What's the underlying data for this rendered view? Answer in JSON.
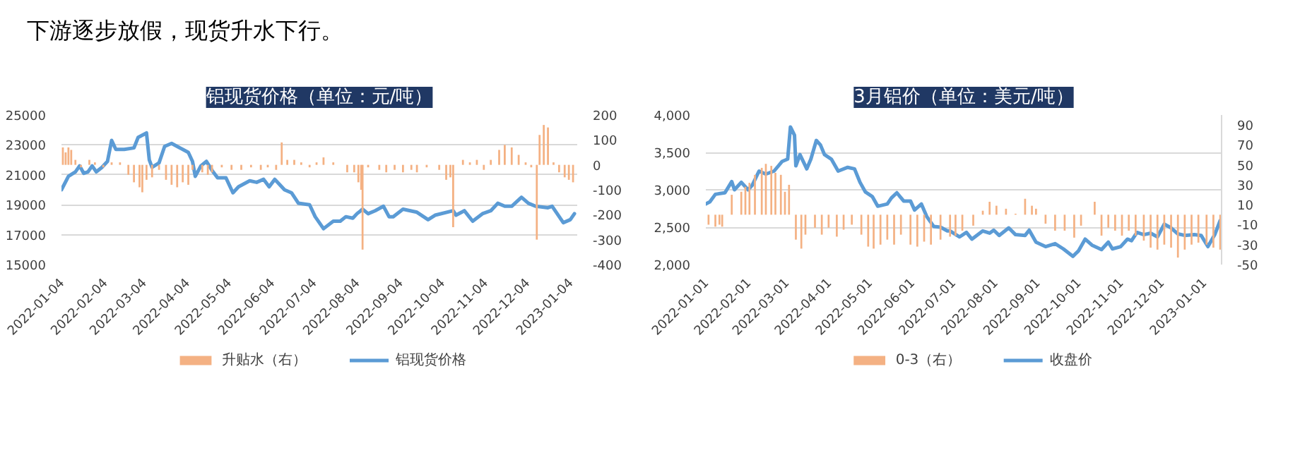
{
  "chart_data": [
    {
      "type": "bar",
      "title": "铝现货价格（单位：元/吨）",
      "annotations": [
        "下游逐步放假，现货升水下行。"
      ],
      "xlim": [
        "2022-01-04",
        "2023-01-09"
      ],
      "xticks": [
        "2022-01-04",
        "2022-02-04",
        "2022-03-04",
        "2022-04-04",
        "2022-05-04",
        "2022-06-04",
        "2022-07-04",
        "2022-08-04",
        "2022-09-04",
        "2022-10-04",
        "2022-11-04",
        "2022-12-04",
        "2023-01-04"
      ],
      "ylim": [
        15000,
        25000
      ],
      "yticks": [
        15000,
        17000,
        19000,
        21000,
        23000,
        25000
      ],
      "y2lim": [
        -400,
        200
      ],
      "y2ticks": [
        -400,
        -300,
        -200,
        -100,
        0,
        100,
        200
      ],
      "grid": "y",
      "legend": "bottom",
      "series": [
        {
          "name": "升贴水（右）",
          "axis": "y2",
          "color": "#f4b183",
          "x": [
            "2022-01-05",
            "2022-01-07",
            "2022-01-09",
            "2022-01-11",
            "2022-01-14",
            "2022-01-18",
            "2022-01-24",
            "2022-01-28",
            "2022-02-03",
            "2022-02-09",
            "2022-02-15",
            "2022-02-21",
            "2022-02-25",
            "2022-03-01",
            "2022-03-03",
            "2022-03-06",
            "2022-03-10",
            "2022-03-15",
            "2022-03-20",
            "2022-03-24",
            "2022-03-28",
            "2022-04-01",
            "2022-04-05",
            "2022-04-08",
            "2022-04-15",
            "2022-04-19",
            "2022-04-22",
            "2022-04-29",
            "2022-05-06",
            "2022-05-13",
            "2022-05-20",
            "2022-05-27",
            "2022-06-01",
            "2022-06-07",
            "2022-06-11",
            "2022-06-15",
            "2022-06-20",
            "2022-06-25",
            "2022-07-01",
            "2022-07-06",
            "2022-07-11",
            "2022-07-18",
            "2022-07-28",
            "2022-08-02",
            "2022-08-05",
            "2022-08-07",
            "2022-08-08",
            "2022-08-12",
            "2022-08-20",
            "2022-08-25",
            "2022-08-31",
            "2022-09-06",
            "2022-09-12",
            "2022-09-16",
            "2022-09-23",
            "2022-10-02",
            "2022-10-07",
            "2022-10-10",
            "2022-10-12",
            "2022-10-19",
            "2022-10-24",
            "2022-10-29",
            "2022-11-03",
            "2022-11-08",
            "2022-11-14",
            "2022-11-18",
            "2022-11-23",
            "2022-11-28",
            "2022-12-03",
            "2022-12-07",
            "2022-12-11",
            "2022-12-13",
            "2022-12-16",
            "2022-12-19",
            "2022-12-23",
            "2022-12-27",
            "2022-12-31",
            "2023-01-03",
            "2023-01-06"
          ],
          "values": [
            70,
            50,
            70,
            60,
            20,
            -10,
            20,
            10,
            -10,
            10,
            10,
            -40,
            -70,
            -90,
            -110,
            -60,
            -50,
            -20,
            -60,
            -80,
            -90,
            -70,
            -80,
            -20,
            -30,
            -40,
            -30,
            -10,
            -20,
            -20,
            -10,
            -20,
            -10,
            -20,
            90,
            20,
            20,
            10,
            -10,
            10,
            30,
            10,
            -30,
            -30,
            -70,
            -100,
            -340,
            -10,
            -20,
            -30,
            -20,
            -30,
            -20,
            -30,
            -10,
            -20,
            -60,
            -50,
            -250,
            20,
            10,
            20,
            -20,
            20,
            60,
            80,
            70,
            40,
            10,
            -10,
            -300,
            120,
            160,
            150,
            10,
            -30,
            -50,
            -60,
            -70
          ]
        },
        {
          "name": "铝现货价格",
          "type": "line",
          "color": "#5b9bd5",
          "x": [
            "2022-01-04",
            "2022-01-09",
            "2022-01-14",
            "2022-01-17",
            "2022-01-20",
            "2022-01-23",
            "2022-01-26",
            "2022-01-29",
            "2022-02-02",
            "2022-02-06",
            "2022-02-09",
            "2022-02-12",
            "2022-02-18",
            "2022-02-25",
            "2022-02-28",
            "2022-03-06",
            "2022-03-08",
            "2022-03-10",
            "2022-03-15",
            "2022-03-19",
            "2022-03-24",
            "2022-04-01",
            "2022-04-05",
            "2022-04-08",
            "2022-04-10",
            "2022-04-14",
            "2022-04-18",
            "2022-04-22",
            "2022-04-26",
            "2022-05-02",
            "2022-05-07",
            "2022-05-11",
            "2022-05-19",
            "2022-05-24",
            "2022-05-29",
            "2022-06-02",
            "2022-06-06",
            "2022-06-09",
            "2022-06-13",
            "2022-06-18",
            "2022-06-23",
            "2022-07-01",
            "2022-07-05",
            "2022-07-11",
            "2022-07-18",
            "2022-07-23",
            "2022-07-27",
            "2022-08-01",
            "2022-08-04",
            "2022-08-08",
            "2022-08-12",
            "2022-08-17",
            "2022-08-23",
            "2022-08-27",
            "2022-08-30",
            "2022-09-06",
            "2022-09-16",
            "2022-09-24",
            "2022-09-29",
            "2022-10-12",
            "2022-10-14",
            "2022-10-20",
            "2022-10-26",
            "2022-11-02",
            "2022-11-08",
            "2022-11-13",
            "2022-11-18",
            "2022-11-23",
            "2022-11-30",
            "2022-12-05",
            "2022-12-10",
            "2022-12-19",
            "2022-12-22",
            "2022-12-30",
            "2023-01-04",
            "2023-01-07"
          ],
          "values": [
            20000,
            20900,
            21200,
            21600,
            21100,
            21200,
            21600,
            21200,
            21500,
            21900,
            23300,
            22700,
            22700,
            22800,
            23500,
            23800,
            22000,
            21500,
            21800,
            22900,
            23100,
            22700,
            22500,
            21900,
            20900,
            21600,
            21900,
            21300,
            20800,
            20800,
            19800,
            20200,
            20600,
            20500,
            20700,
            20200,
            20700,
            20400,
            20000,
            19800,
            19100,
            19000,
            18200,
            17400,
            17900,
            17900,
            18200,
            18100,
            18400,
            18700,
            18400,
            18600,
            18900,
            18200,
            18200,
            18700,
            18500,
            18000,
            18300,
            18600,
            18300,
            18600,
            17900,
            18400,
            18600,
            19100,
            18900,
            18900,
            19500,
            19100,
            18900,
            18800,
            18900,
            17800,
            18000,
            18400
          ]
        }
      ]
    },
    {
      "type": "bar",
      "title": "3月铝价（单位：美元/吨）",
      "xlim": [
        "2022-01-01",
        "2023-01-14"
      ],
      "xticks": [
        "2022-01-01",
        "2022-02-01",
        "2022-03-01",
        "2022-04-01",
        "2022-05-01",
        "2022-06-01",
        "2022-07-01",
        "2022-08-01",
        "2022-09-01",
        "2022-10-01",
        "2022-11-01",
        "2022-12-01",
        "2023-01-01"
      ],
      "ylim": [
        2000,
        4000
      ],
      "yticks": [
        {
          "value": 2000,
          "label": "2,000"
        },
        {
          "value": 2500,
          "label": "2,500"
        },
        {
          "value": 3000,
          "label": "3,000"
        },
        {
          "value": 3500,
          "label": "3,500"
        },
        {
          "value": 4000,
          "label": "4,000"
        }
      ],
      "y2lim": [
        -50,
        100
      ],
      "y2ticks": [
        -50,
        -30,
        -10,
        10,
        30,
        50,
        70,
        90
      ],
      "grid": "y",
      "legend": "bottom",
      "series": [
        {
          "name": "0-3（右）",
          "axis": "y2",
          "color": "#f4b183",
          "x": [
            "2022-01-03",
            "2022-01-08",
            "2022-01-11",
            "2022-01-13",
            "2022-01-20",
            "2022-01-27",
            "2022-01-30",
            "2022-02-02",
            "2022-02-06",
            "2022-02-11",
            "2022-02-14",
            "2022-02-18",
            "2022-02-21",
            "2022-02-25",
            "2022-02-28",
            "2022-03-03",
            "2022-03-08",
            "2022-03-12",
            "2022-03-15",
            "2022-03-22",
            "2022-03-27",
            "2022-04-01",
            "2022-04-07",
            "2022-04-12",
            "2022-04-18",
            "2022-04-25",
            "2022-04-30",
            "2022-05-04",
            "2022-05-09",
            "2022-05-14",
            "2022-05-19",
            "2022-05-24",
            "2022-05-31",
            "2022-06-05",
            "2022-06-10",
            "2022-06-15",
            "2022-06-22",
            "2022-06-29",
            "2022-07-03",
            "2022-07-08",
            "2022-07-16",
            "2022-07-23",
            "2022-07-28",
            "2022-08-02",
            "2022-08-09",
            "2022-08-16",
            "2022-08-23",
            "2022-08-28",
            "2022-08-31",
            "2022-09-07",
            "2022-09-14",
            "2022-09-21",
            "2022-09-28",
            "2022-10-03",
            "2022-10-08",
            "2022-10-13",
            "2022-10-18",
            "2022-10-23",
            "2022-10-28",
            "2022-11-02",
            "2022-11-07",
            "2022-11-12",
            "2022-11-18",
            "2022-11-23",
            "2022-11-28",
            "2022-12-03",
            "2022-12-08",
            "2022-12-13",
            "2022-12-18",
            "2022-12-23",
            "2022-12-28",
            "2023-01-03",
            "2023-01-08",
            "2023-01-13"
          ],
          "values": [
            -10,
            -12,
            -10,
            -12,
            20,
            23,
            28,
            32,
            40,
            47,
            51,
            49,
            42,
            40,
            23,
            30,
            -25,
            -34,
            -20,
            -13,
            -20,
            -13,
            -22,
            -15,
            -10,
            -20,
            -32,
            -34,
            -30,
            -25,
            -30,
            -20,
            -30,
            -32,
            -27,
            -30,
            -25,
            -22,
            -21,
            -16,
            -11,
            4,
            13,
            9,
            6,
            1,
            16,
            9,
            6,
            -9,
            -16,
            -16,
            -23,
            -11,
            0,
            13,
            -21,
            -13,
            -16,
            -21,
            -16,
            -21,
            -26,
            -33,
            -35,
            -30,
            -33,
            -43,
            -35,
            -30,
            -28,
            -30,
            -33,
            -35
          ]
        },
        {
          "name": "收盘价",
          "type": "line",
          "color": "#5b9bd5",
          "x": [
            "2022-01-01",
            "2022-01-04",
            "2022-01-08",
            "2022-01-15",
            "2022-01-20",
            "2022-01-22",
            "2022-01-27",
            "2022-02-01",
            "2022-02-04",
            "2022-02-09",
            "2022-02-14",
            "2022-02-20",
            "2022-02-26",
            "2022-03-02",
            "2022-03-04",
            "2022-03-07",
            "2022-03-08",
            "2022-03-11",
            "2022-03-16",
            "2022-03-19",
            "2022-03-23",
            "2022-03-26",
            "2022-03-29",
            "2022-04-03",
            "2022-04-08",
            "2022-04-15",
            "2022-04-20",
            "2022-04-24",
            "2022-04-28",
            "2022-05-03",
            "2022-05-07",
            "2022-05-14",
            "2022-05-17",
            "2022-05-21",
            "2022-05-26",
            "2022-05-31",
            "2022-06-03",
            "2022-06-08",
            "2022-06-12",
            "2022-06-17",
            "2022-06-22",
            "2022-06-27",
            "2022-06-29",
            "2022-07-06",
            "2022-07-11",
            "2022-07-15",
            "2022-07-23",
            "2022-07-28",
            "2022-07-31",
            "2022-08-04",
            "2022-08-11",
            "2022-08-16",
            "2022-08-23",
            "2022-08-26",
            "2022-08-31",
            "2022-09-07",
            "2022-09-14",
            "2022-09-20",
            "2022-09-27",
            "2022-10-01",
            "2022-10-06",
            "2022-10-11",
            "2022-10-18",
            "2022-10-23",
            "2022-10-26",
            "2022-11-01",
            "2022-11-06",
            "2022-11-09",
            "2022-11-13",
            "2022-11-18",
            "2022-11-23",
            "2022-11-28",
            "2022-12-03",
            "2022-12-08",
            "2022-12-13",
            "2022-12-18",
            "2022-12-25",
            "2022-12-30",
            "2023-01-04",
            "2023-01-09",
            "2023-01-13"
          ],
          "values": [
            2810,
            2840,
            2940,
            2960,
            3110,
            3000,
            3100,
            3000,
            3060,
            3250,
            3210,
            3250,
            3380,
            3410,
            3840,
            3730,
            3320,
            3470,
            3280,
            3410,
            3660,
            3600,
            3470,
            3410,
            3250,
            3300,
            3280,
            3100,
            2970,
            2910,
            2780,
            2810,
            2890,
            2960,
            2850,
            2850,
            2730,
            2810,
            2640,
            2510,
            2500,
            2450,
            2450,
            2370,
            2430,
            2340,
            2450,
            2420,
            2460,
            2390,
            2490,
            2400,
            2390,
            2460,
            2300,
            2240,
            2280,
            2210,
            2110,
            2180,
            2340,
            2260,
            2200,
            2300,
            2210,
            2240,
            2340,
            2320,
            2430,
            2400,
            2420,
            2370,
            2540,
            2490,
            2410,
            2390,
            2400,
            2390,
            2240,
            2400,
            2590
          ]
        }
      ]
    }
  ]
}
